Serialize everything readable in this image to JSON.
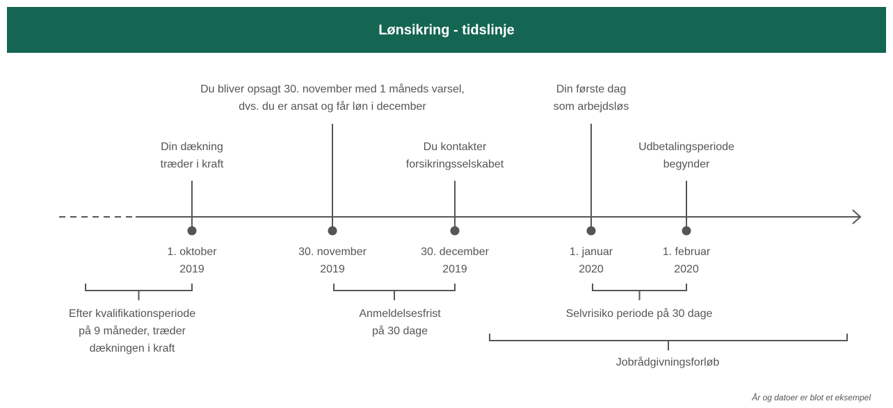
{
  "header": {
    "title": "Lønsikring - tidslinje"
  },
  "events": [
    {
      "label": [
        "Din dækning",
        "træder i kraft"
      ],
      "date": [
        "1. oktober",
        "2019"
      ]
    },
    {
      "label": [
        "Du bliver opsagt 30. november med 1 måneds varsel,",
        "dvs. du er ansat og får løn i december"
      ],
      "date": [
        "30. november",
        "2019"
      ]
    },
    {
      "label": [
        "Du kontakter",
        "forsikringsselskabet"
      ],
      "date": [
        "30. december",
        "2019"
      ]
    },
    {
      "label": [
        "Din første dag",
        "som arbejdsløs"
      ],
      "date": [
        "1. januar",
        "2020"
      ]
    },
    {
      "label": [
        "Udbetalingsperiode",
        "begynder"
      ],
      "date": [
        "1. februar",
        "2020"
      ]
    }
  ],
  "periods": [
    {
      "label": [
        "Efter kvalifikationsperiode",
        "på 9 måneder, træder",
        "dækningen i kraft"
      ]
    },
    {
      "label": [
        "Anmeldelsesfrist",
        "på 30 dage"
      ]
    },
    {
      "label": [
        "Selvrisiko periode på 30 dage"
      ]
    },
    {
      "label": [
        "Jobrådgivningsforløb"
      ]
    }
  ],
  "note": "År og datoer er blot et eksempel"
}
